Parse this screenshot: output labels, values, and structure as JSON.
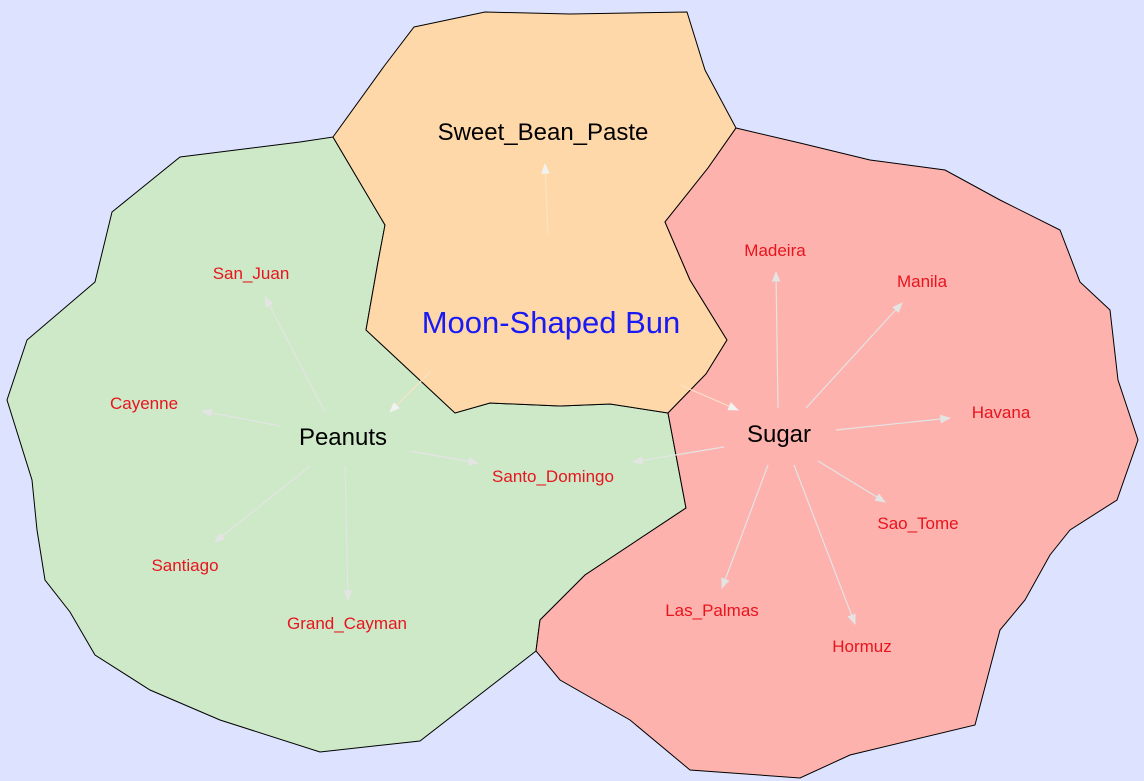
{
  "background_color": "#dde2ff",
  "root": {
    "label": "Moon-Shaped Bun",
    "color": "#1a1af5"
  },
  "clusters": [
    {
      "id": "sweet_bean_paste",
      "label": "Sweet_Bean_Paste",
      "fill": "#fed8a8",
      "children": []
    },
    {
      "id": "peanuts",
      "label": "Peanuts",
      "fill": "#cde9c7",
      "children": [
        "San_Juan",
        "Cayenne",
        "Santo_Domingo",
        "Santiago",
        "Grand_Cayman"
      ]
    },
    {
      "id": "sugar",
      "label": "Sugar",
      "fill": "#fdb2ad",
      "children": [
        "Madeira",
        "Manila",
        "Havana",
        "Sao_Tome",
        "Hormuz",
        "Las_Palmas",
        "Santo_Domingo"
      ]
    }
  ],
  "cities": {
    "San_Juan": "San_Juan",
    "Cayenne": "Cayenne",
    "Santo_Domingo": "Santo_Domingo",
    "Santiago": "Santiago",
    "Grand_Cayman": "Grand_Cayman",
    "Madeira": "Madeira",
    "Manila": "Manila",
    "Havana": "Havana",
    "Sao_Tome": "Sao_Tome",
    "Hormuz": "Hormuz",
    "Las_Palmas": "Las_Palmas"
  },
  "colors": {
    "edge": "#e4e4e4",
    "city_text": "#e8141e",
    "center_text": "#000000",
    "region_outline": "#000000"
  }
}
